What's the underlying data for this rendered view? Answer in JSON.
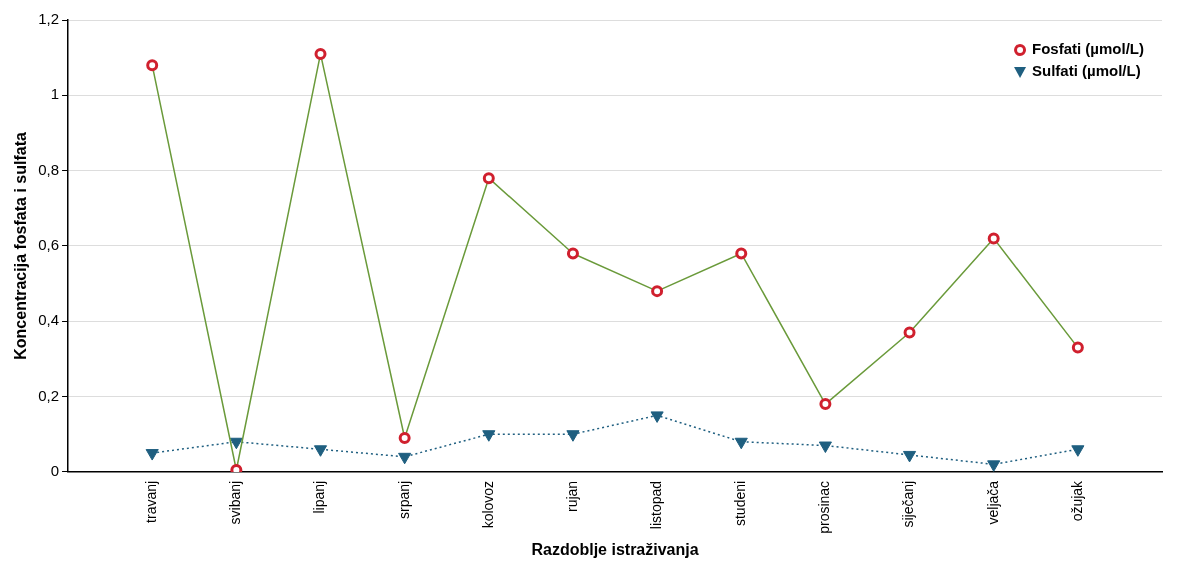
{
  "chart_data": {
    "type": "line",
    "xlabel": "Razdoblje istraživanja",
    "ylabel": "Koncentracija fosfata i sulfata",
    "categories": [
      "travanj",
      "svibanj",
      "lipanj",
      "srpanj",
      "kolovoz",
      "rujan",
      "listopad",
      "studeni",
      "prosinac",
      "siječanj",
      "veljača",
      "ožujak"
    ],
    "series": [
      {
        "name": "Fosfati (µmol/L)",
        "color": "#6a9a3a",
        "colors": [
          "#d0202e",
          "#d0202e",
          "#d0202e",
          "#d0202e",
          "#d0202e",
          "#d0202e",
          "#d0202e",
          "#d0202e",
          "#d0202e",
          "#d0202e",
          "#d0202e",
          "#d0202e"
        ],
        "marker": "circle",
        "line_style": "solid",
        "values": [
          1.08,
          0.005,
          1.11,
          0.09,
          0.78,
          0.58,
          0.48,
          0.58,
          0.18,
          0.37,
          0.62,
          0.33
        ]
      },
      {
        "name": "Sulfati (µmol/L)",
        "color": "#1f5f80",
        "marker": "triangle",
        "line_style": "dotted",
        "values": [
          0.05,
          0.08,
          0.06,
          0.04,
          0.1,
          0.1,
          0.15,
          0.08,
          0.07,
          0.045,
          0.02,
          0.06
        ]
      }
    ],
    "ylim": [
      0,
      1.2
    ],
    "yticks": [
      0,
      {
        "value": 0.2,
        "label": "0,2"
      },
      {
        "value": 0.4,
        "label": "0,4"
      },
      {
        "value": 0.6,
        "label": "0,6"
      },
      {
        "value": 0.8,
        "label": "0,8"
      },
      1,
      {
        "value": 1.2,
        "label": "1,2"
      }
    ],
    "grid": "y",
    "legend": "top right"
  }
}
